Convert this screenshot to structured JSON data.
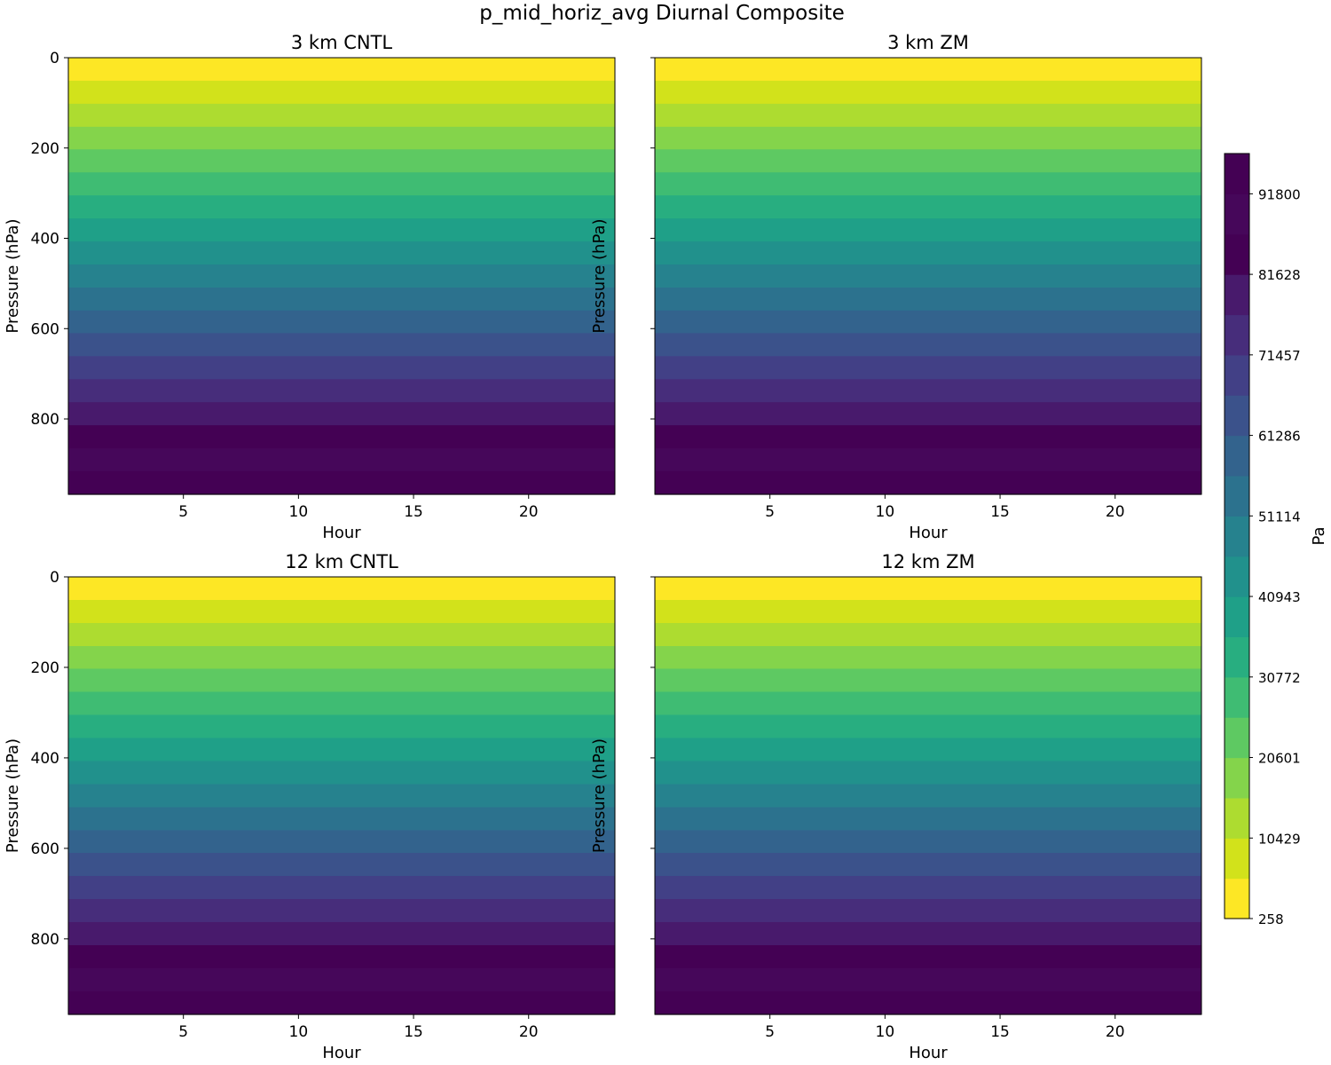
{
  "figure": {
    "title": "p_mid_horiz_avg Diurnal Composite"
  },
  "chart_data": [
    {
      "type": "heatmap",
      "title": "3 km CNTL",
      "xlabel": "Hour",
      "ylabel": "Pressure (hPa)",
      "xlim": [
        0,
        23.75
      ],
      "ylim": [
        967,
        0
      ],
      "xticks": [
        5,
        10,
        15,
        20
      ],
      "yticks": [
        0,
        200,
        400,
        600,
        800
      ],
      "show_ytick_labels": true,
      "band_edges_hpa": [
        0,
        51,
        102,
        153,
        203,
        254,
        305,
        356,
        407,
        458,
        509,
        560,
        610,
        661,
        712,
        763,
        814,
        865,
        916,
        967
      ],
      "band_levels": [
        0,
        1,
        2,
        3,
        4,
        5,
        6,
        7,
        8,
        9,
        10,
        11,
        12,
        13,
        14,
        15,
        16,
        17,
        18
      ]
    },
    {
      "type": "heatmap",
      "title": "3 km ZM",
      "xlabel": "Hour",
      "ylabel": "Pressure (hPa)",
      "xlim": [
        0,
        23.75
      ],
      "ylim": [
        967,
        0
      ],
      "xticks": [
        5,
        10,
        15,
        20
      ],
      "yticks": [
        0,
        200,
        400,
        600,
        800
      ],
      "show_ytick_labels": false,
      "band_edges_hpa": [
        0,
        51,
        102,
        153,
        203,
        254,
        305,
        356,
        407,
        458,
        509,
        560,
        610,
        661,
        712,
        763,
        814,
        865,
        916,
        967
      ],
      "band_levels": [
        0,
        1,
        2,
        3,
        4,
        5,
        6,
        7,
        8,
        9,
        10,
        11,
        12,
        13,
        14,
        15,
        16,
        17,
        18
      ]
    },
    {
      "type": "heatmap",
      "title": "12 km CNTL",
      "xlabel": "Hour",
      "ylabel": "Pressure (hPa)",
      "xlim": [
        0,
        23.75
      ],
      "ylim": [
        967,
        0
      ],
      "xticks": [
        5,
        10,
        15,
        20
      ],
      "yticks": [
        0,
        200,
        400,
        600,
        800
      ],
      "show_ytick_labels": true,
      "band_edges_hpa": [
        0,
        51,
        102,
        153,
        203,
        254,
        305,
        356,
        407,
        458,
        509,
        560,
        610,
        661,
        712,
        763,
        814,
        865,
        916,
        967
      ],
      "band_levels": [
        0,
        1,
        2,
        3,
        4,
        5,
        6,
        7,
        8,
        9,
        10,
        11,
        12,
        13,
        14,
        15,
        16,
        17,
        18
      ]
    },
    {
      "type": "heatmap",
      "title": "12 km ZM",
      "xlabel": "Hour",
      "ylabel": "Pressure (hPa)",
      "xlim": [
        0,
        23.75
      ],
      "ylim": [
        967,
        0
      ],
      "xticks": [
        5,
        10,
        15,
        20
      ],
      "yticks": [
        0,
        200,
        400,
        600,
        800
      ],
      "show_ytick_labels": false,
      "band_edges_hpa": [
        0,
        51,
        102,
        153,
        203,
        254,
        305,
        356,
        407,
        458,
        509,
        560,
        610,
        661,
        712,
        763,
        814,
        865,
        916,
        967
      ],
      "band_levels": [
        0,
        1,
        2,
        3,
        4,
        5,
        6,
        7,
        8,
        9,
        10,
        11,
        12,
        13,
        14,
        15,
        16,
        17,
        18
      ]
    }
  ],
  "colorbar": {
    "label": "Pa",
    "vmin": 258,
    "vmax": 96886,
    "ticks": [
      258,
      10429,
      20601,
      30772,
      40943,
      51114,
      61286,
      71457,
      81628,
      91800
    ],
    "colors": [
      "#fde725",
      "#d2e21b",
      "#addc30",
      "#84d44b",
      "#5ec962",
      "#3fbc73",
      "#28ae80",
      "#1fa088",
      "#21918c",
      "#26828e",
      "#2c728e",
      "#33638d",
      "#3b528b",
      "#424086",
      "#472d7b",
      "#481a6c",
      "#440154",
      "#46075a",
      "#440154"
    ]
  }
}
